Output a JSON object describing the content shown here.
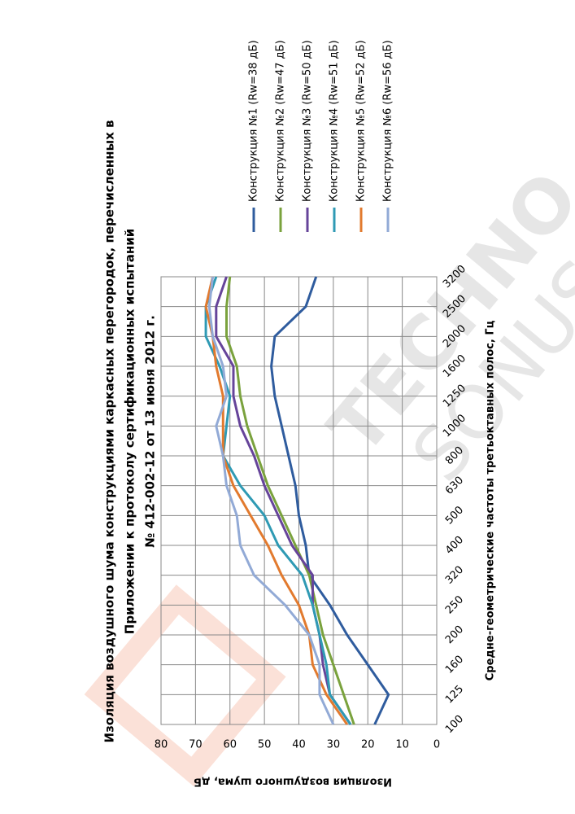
{
  "chart_data": {
    "type": "line",
    "title": [
      "Изоляция воздушного шума конструкциями каркасных перегородок, перечисленных в",
      "Приложении к протоколу сертификационных испытаний",
      "№ 412-002-12 от 13 июня 2012 г."
    ],
    "x_label": "Средне-геометрические частоты третьоктавных полос, Гц",
    "y_label": "Изоляция воздушного шума, дБ",
    "watermark": [
      "TECHNO",
      "SONUS"
    ],
    "categories": [
      "100",
      "125",
      "160",
      "200",
      "250",
      "320",
      "400",
      "500",
      "630",
      "800",
      "1000",
      "1250",
      "1600",
      "2000",
      "2500",
      "3200"
    ],
    "ylim": [
      0,
      80
    ],
    "yticks": [
      0,
      10,
      20,
      30,
      40,
      50,
      60,
      70,
      80
    ],
    "grid": true,
    "series": [
      {
        "name": "Конструкция №1 (Rw=38 дБ)",
        "color": "#2f5c9e",
        "values": [
          18,
          14,
          20,
          26,
          31,
          37,
          38,
          40,
          41,
          43,
          45,
          47,
          48,
          47,
          38,
          35
        ]
      },
      {
        "name": "Конструкция №2 (Rw=47 дБ)",
        "color": "#7aa23d",
        "values": [
          24,
          27,
          30,
          33,
          35,
          37,
          41,
          45,
          49,
          52,
          55,
          57,
          58,
          61,
          61,
          60
        ]
      },
      {
        "name": "Конструкция №3 (Rw=50 дБ)",
        "color": "#66449a",
        "values": [
          25,
          31,
          33,
          34,
          36,
          36,
          42,
          46,
          50,
          53,
          57,
          59,
          59,
          64,
          64,
          61
        ]
      },
      {
        "name": "Конструкция №4 (Rw=51 дБ)",
        "color": "#2f9ab4",
        "values": [
          25,
          31,
          32,
          34,
          36,
          39,
          46,
          50,
          57,
          62,
          61,
          60,
          63,
          67,
          67,
          64
        ]
      },
      {
        "name": "Конструкция №5 (Rw=52 дБ)",
        "color": "#e27a2e",
        "values": [
          26,
          32,
          36,
          37,
          40,
          45,
          49,
          54,
          59,
          62,
          62,
          62,
          64,
          65,
          67,
          65
        ]
      },
      {
        "name": "Конструкция №6 (Rw=56 дБ)",
        "color": "#92aad6",
        "values": [
          30,
          34,
          34,
          37,
          44,
          53,
          57,
          58,
          61,
          62,
          64,
          61,
          62,
          65,
          66,
          65
        ]
      }
    ]
  }
}
